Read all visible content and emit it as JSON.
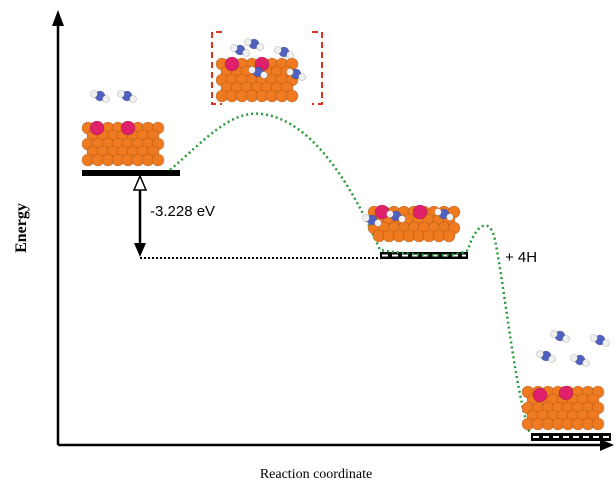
{
  "axes": {
    "y_label": "Energy",
    "x_label": "Reaction coordinate"
  },
  "annotations": {
    "energy_gap": "-3.228 eV",
    "product_note": "+ 4H"
  }
}
